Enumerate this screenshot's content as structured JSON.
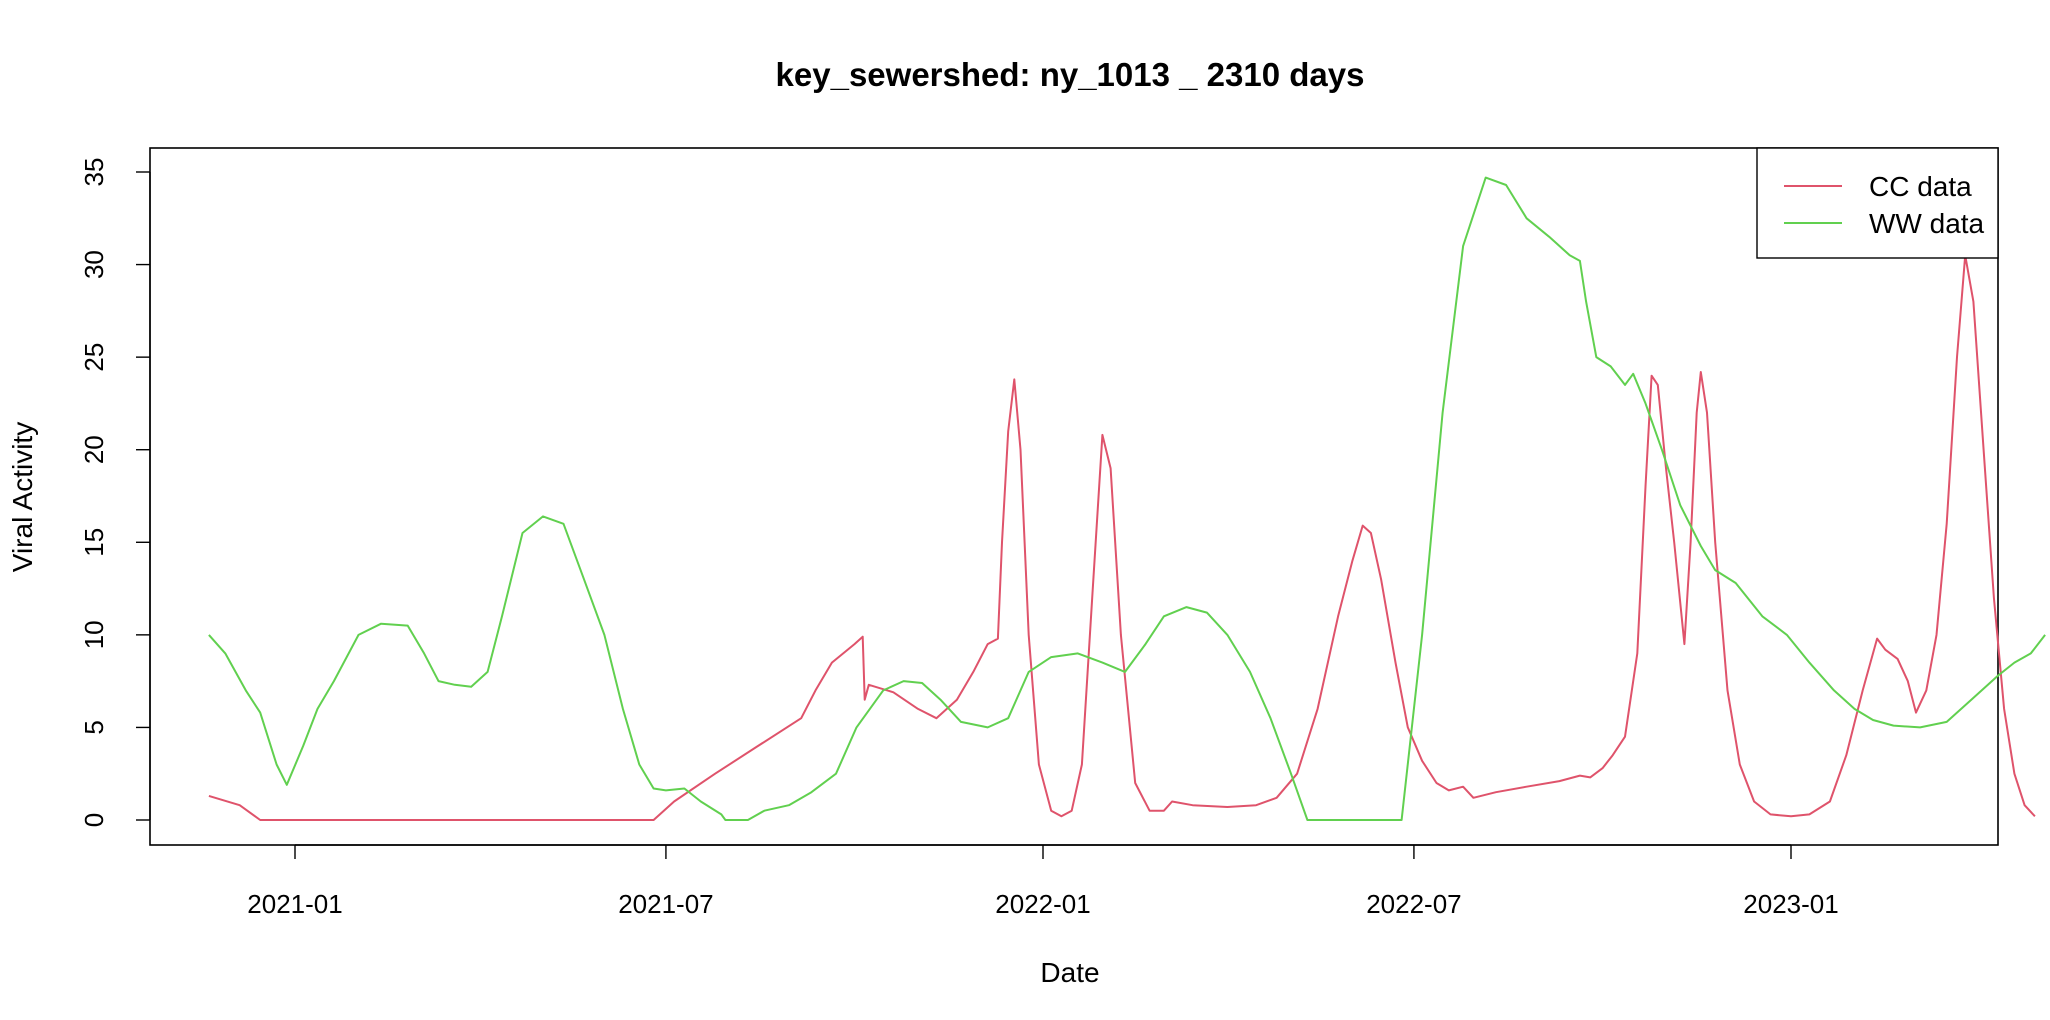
{
  "chart_data": {
    "type": "line",
    "title": "key_sewershed:  ny_1013 _ 2310  days",
    "xlabel": "Date",
    "ylabel": "Viral Activity",
    "ylim": [
      0,
      35
    ],
    "xlim": [
      "2020-11-01",
      "2023-04-30"
    ],
    "grid": false,
    "legend_position": "top-right",
    "x_ticks": [
      {
        "date": "2021-01-01",
        "label": "2021-01"
      },
      {
        "date": "2021-07-01",
        "label": "2021-07"
      },
      {
        "date": "2022-01-01",
        "label": "2022-01"
      },
      {
        "date": "2022-07-01",
        "label": "2022-07"
      },
      {
        "date": "2023-01-01",
        "label": "2023-01"
      }
    ],
    "y_ticks": [
      0,
      5,
      10,
      15,
      20,
      25,
      30,
      35
    ],
    "series": [
      {
        "name": "CC data",
        "color": "#DF536B",
        "points": [
          [
            "2020-11-20",
            1.3
          ],
          [
            "2020-12-05",
            0.8
          ],
          [
            "2020-12-15",
            0.0
          ],
          [
            "2021-06-25",
            0.0
          ],
          [
            "2021-07-05",
            1.0
          ],
          [
            "2021-07-25",
            2.5
          ],
          [
            "2021-08-15",
            4.0
          ],
          [
            "2021-09-05",
            5.5
          ],
          [
            "2021-09-12",
            7.0
          ],
          [
            "2021-09-20",
            8.5
          ],
          [
            "2021-10-01",
            9.5
          ],
          [
            "2021-10-05",
            9.9
          ],
          [
            "2021-10-06",
            6.5
          ],
          [
            "2021-10-08",
            7.3
          ],
          [
            "2021-10-20",
            6.9
          ],
          [
            "2021-11-01",
            6.0
          ],
          [
            "2021-11-10",
            5.5
          ],
          [
            "2021-11-20",
            6.5
          ],
          [
            "2021-11-28",
            8.0
          ],
          [
            "2021-12-05",
            9.5
          ],
          [
            "2021-12-10",
            9.8
          ],
          [
            "2021-12-12",
            15.0
          ],
          [
            "2021-12-15",
            21.0
          ],
          [
            "2021-12-18",
            23.8
          ],
          [
            "2021-12-21",
            20.0
          ],
          [
            "2021-12-25",
            10.0
          ],
          [
            "2021-12-30",
            3.0
          ],
          [
            "2022-01-05",
            0.5
          ],
          [
            "2022-01-10",
            0.2
          ],
          [
            "2022-01-15",
            0.5
          ],
          [
            "2022-01-20",
            3.0
          ],
          [
            "2022-01-25",
            12.0
          ],
          [
            "2022-01-30",
            20.8
          ],
          [
            "2022-02-03",
            19.0
          ],
          [
            "2022-02-08",
            10.0
          ],
          [
            "2022-02-15",
            2.0
          ],
          [
            "2022-02-22",
            0.5
          ],
          [
            "2022-03-01",
            0.5
          ],
          [
            "2022-03-05",
            1.0
          ],
          [
            "2022-03-15",
            0.8
          ],
          [
            "2022-04-01",
            0.7
          ],
          [
            "2022-04-15",
            0.8
          ],
          [
            "2022-04-25",
            1.2
          ],
          [
            "2022-05-05",
            2.5
          ],
          [
            "2022-05-15",
            6.0
          ],
          [
            "2022-05-25",
            11.0
          ],
          [
            "2022-06-01",
            14.0
          ],
          [
            "2022-06-06",
            15.9
          ],
          [
            "2022-06-10",
            15.5
          ],
          [
            "2022-06-15",
            13.0
          ],
          [
            "2022-06-22",
            8.5
          ],
          [
            "2022-06-28",
            5.0
          ],
          [
            "2022-07-05",
            3.2
          ],
          [
            "2022-07-12",
            2.0
          ],
          [
            "2022-07-18",
            1.6
          ],
          [
            "2022-07-25",
            1.8
          ],
          [
            "2022-07-30",
            1.2
          ],
          [
            "2022-08-10",
            1.5
          ],
          [
            "2022-08-25",
            1.8
          ],
          [
            "2022-09-10",
            2.1
          ],
          [
            "2022-09-20",
            2.4
          ],
          [
            "2022-09-25",
            2.3
          ],
          [
            "2022-10-01",
            2.8
          ],
          [
            "2022-10-06",
            3.5
          ],
          [
            "2022-10-12",
            4.5
          ],
          [
            "2022-10-18",
            9.0
          ],
          [
            "2022-10-22",
            18.0
          ],
          [
            "2022-10-25",
            24.0
          ],
          [
            "2022-10-28",
            23.5
          ],
          [
            "2022-11-01",
            19.0
          ],
          [
            "2022-11-05",
            15.0
          ],
          [
            "2022-11-10",
            9.5
          ],
          [
            "2022-11-13",
            15.0
          ],
          [
            "2022-11-16",
            22.0
          ],
          [
            "2022-11-18",
            24.2
          ],
          [
            "2022-11-21",
            22.0
          ],
          [
            "2022-11-25",
            15.0
          ],
          [
            "2022-12-01",
            7.0
          ],
          [
            "2022-12-07",
            3.0
          ],
          [
            "2022-12-14",
            1.0
          ],
          [
            "2022-12-22",
            0.3
          ],
          [
            "2023-01-01",
            0.2
          ],
          [
            "2023-01-10",
            0.3
          ],
          [
            "2023-01-20",
            1.0
          ],
          [
            "2023-01-28",
            3.5
          ],
          [
            "2023-02-05",
            7.0
          ],
          [
            "2023-02-12",
            9.8
          ],
          [
            "2023-02-16",
            9.2
          ],
          [
            "2023-02-22",
            8.7
          ],
          [
            "2023-02-27",
            7.5
          ],
          [
            "2023-03-03",
            5.8
          ],
          [
            "2023-03-08",
            7.0
          ],
          [
            "2023-03-13",
            10.0
          ],
          [
            "2023-03-18",
            16.0
          ],
          [
            "2023-03-23",
            25.0
          ],
          [
            "2023-03-27",
            30.5
          ],
          [
            "2023-03-31",
            28.0
          ],
          [
            "2023-04-05",
            20.0
          ],
          [
            "2023-04-10",
            12.0
          ],
          [
            "2023-04-15",
            6.0
          ],
          [
            "2023-04-20",
            2.5
          ],
          [
            "2023-04-25",
            0.8
          ],
          [
            "2023-04-30",
            0.2
          ]
        ]
      },
      {
        "name": "WW data",
        "color": "#61D04F",
        "points": [
          [
            "2020-11-20",
            10.0
          ],
          [
            "2020-11-28",
            9.0
          ],
          [
            "2020-12-08",
            7.0
          ],
          [
            "2020-12-15",
            5.8
          ],
          [
            "2020-12-23",
            3.0
          ],
          [
            "2020-12-28",
            1.9
          ],
          [
            "2021-01-05",
            4.0
          ],
          [
            "2021-01-12",
            6.0
          ],
          [
            "2021-01-20",
            7.5
          ],
          [
            "2021-02-01",
            10.0
          ],
          [
            "2021-02-12",
            10.6
          ],
          [
            "2021-02-25",
            10.5
          ],
          [
            "2021-03-05",
            9.0
          ],
          [
            "2021-03-12",
            7.5
          ],
          [
            "2021-03-20",
            7.3
          ],
          [
            "2021-03-28",
            7.2
          ],
          [
            "2021-04-05",
            8.0
          ],
          [
            "2021-04-12",
            11.0
          ],
          [
            "2021-04-22",
            15.5
          ],
          [
            "2021-05-02",
            16.4
          ],
          [
            "2021-05-12",
            16.0
          ],
          [
            "2021-05-22",
            13.0
          ],
          [
            "2021-06-01",
            10.0
          ],
          [
            "2021-06-10",
            6.0
          ],
          [
            "2021-06-18",
            3.0
          ],
          [
            "2021-06-25",
            1.7
          ],
          [
            "2021-07-01",
            1.6
          ],
          [
            "2021-07-10",
            1.7
          ],
          [
            "2021-07-18",
            1.0
          ],
          [
            "2021-07-28",
            0.3
          ],
          [
            "2021-07-30",
            0.0
          ],
          [
            "2021-08-10",
            0.0
          ],
          [
            "2021-08-18",
            0.5
          ],
          [
            "2021-08-30",
            0.8
          ],
          [
            "2021-09-10",
            1.5
          ],
          [
            "2021-09-22",
            2.5
          ],
          [
            "2021-10-02",
            5.0
          ],
          [
            "2021-10-15",
            7.0
          ],
          [
            "2021-10-25",
            7.5
          ],
          [
            "2021-11-03",
            7.4
          ],
          [
            "2021-11-12",
            6.5
          ],
          [
            "2021-11-22",
            5.3
          ],
          [
            "2021-12-05",
            5.0
          ],
          [
            "2021-12-15",
            5.5
          ],
          [
            "2021-12-25",
            8.0
          ],
          [
            "2022-01-05",
            8.8
          ],
          [
            "2022-01-18",
            9.0
          ],
          [
            "2022-01-30",
            8.5
          ],
          [
            "2022-02-10",
            8.0
          ],
          [
            "2022-02-20",
            9.5
          ],
          [
            "2022-03-01",
            11.0
          ],
          [
            "2022-03-12",
            11.5
          ],
          [
            "2022-03-22",
            11.2
          ],
          [
            "2022-04-01",
            10.0
          ],
          [
            "2022-04-12",
            8.0
          ],
          [
            "2022-04-22",
            5.5
          ],
          [
            "2022-05-02",
            2.5
          ],
          [
            "2022-05-10",
            0.0
          ],
          [
            "2022-06-25",
            0.0
          ],
          [
            "2022-07-05",
            10.0
          ],
          [
            "2022-07-15",
            22.0
          ],
          [
            "2022-07-25",
            31.0
          ],
          [
            "2022-08-05",
            34.7
          ],
          [
            "2022-08-15",
            34.3
          ],
          [
            "2022-08-25",
            32.5
          ],
          [
            "2022-09-05",
            31.5
          ],
          [
            "2022-09-15",
            30.5
          ],
          [
            "2022-09-20",
            30.2
          ],
          [
            "2022-09-23",
            28.0
          ],
          [
            "2022-09-28",
            25.0
          ],
          [
            "2022-10-05",
            24.5
          ],
          [
            "2022-10-12",
            23.5
          ],
          [
            "2022-10-16",
            24.1
          ],
          [
            "2022-10-22",
            22.5
          ],
          [
            "2022-10-30",
            20.0
          ],
          [
            "2022-11-08",
            17.0
          ],
          [
            "2022-11-18",
            14.8
          ],
          [
            "2022-11-25",
            13.5
          ],
          [
            "2022-12-05",
            12.8
          ],
          [
            "2022-12-18",
            11.0
          ],
          [
            "2022-12-30",
            10.0
          ],
          [
            "2023-01-10",
            8.5
          ],
          [
            "2023-01-22",
            7.0
          ],
          [
            "2023-02-01",
            6.0
          ],
          [
            "2023-02-10",
            5.4
          ],
          [
            "2023-02-20",
            5.1
          ],
          [
            "2023-03-05",
            5.0
          ],
          [
            "2023-03-18",
            5.3
          ],
          [
            "2023-03-30",
            6.5
          ],
          [
            "2023-04-12",
            7.8
          ],
          [
            "2023-04-20",
            8.5
          ],
          [
            "2023-04-28",
            9.0
          ],
          [
            "2023-05-05",
            10.0
          ]
        ]
      }
    ]
  }
}
